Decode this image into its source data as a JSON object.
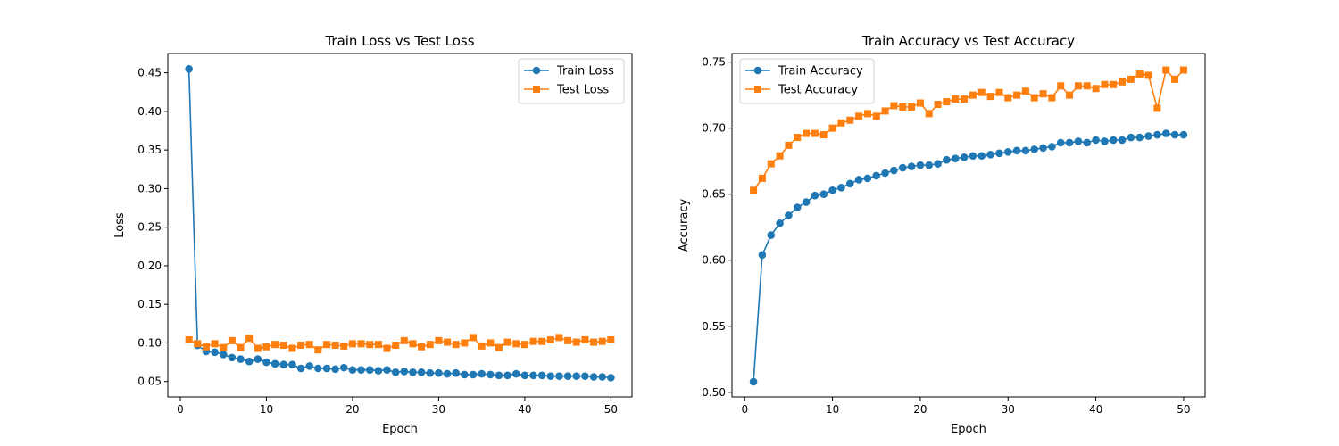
{
  "chart_data": [
    {
      "type": "line",
      "title": "Train Loss vs Test Loss",
      "xlabel": "Epoch",
      "ylabel": "Loss",
      "xlim": [
        -1.45,
        52.45
      ],
      "ylim": [
        0.03,
        0.475
      ],
      "xticks": [
        0,
        10,
        20,
        30,
        40,
        50
      ],
      "yticks": [
        0.05,
        0.1,
        0.15,
        0.2,
        0.25,
        0.3,
        0.35,
        0.4,
        0.45
      ],
      "legend_position": "top-right",
      "x": [
        1,
        2,
        3,
        4,
        5,
        6,
        7,
        8,
        9,
        10,
        11,
        12,
        13,
        14,
        15,
        16,
        17,
        18,
        19,
        20,
        21,
        22,
        23,
        24,
        25,
        26,
        27,
        28,
        29,
        30,
        31,
        32,
        33,
        34,
        35,
        36,
        37,
        38,
        39,
        40,
        41,
        42,
        43,
        44,
        45,
        46,
        47,
        48,
        49,
        50
      ],
      "series": [
        {
          "name": "Train Loss",
          "color": "#1f77b4",
          "marker": "circle",
          "values": [
            0.455,
            0.097,
            0.089,
            0.088,
            0.085,
            0.081,
            0.079,
            0.076,
            0.079,
            0.075,
            0.073,
            0.072,
            0.072,
            0.067,
            0.07,
            0.067,
            0.067,
            0.066,
            0.068,
            0.065,
            0.065,
            0.065,
            0.064,
            0.065,
            0.062,
            0.063,
            0.062,
            0.062,
            0.061,
            0.061,
            0.06,
            0.061,
            0.059,
            0.059,
            0.06,
            0.059,
            0.058,
            0.058,
            0.06,
            0.058,
            0.058,
            0.058,
            0.057,
            0.057,
            0.057,
            0.057,
            0.057,
            0.056,
            0.056,
            0.055
          ]
        },
        {
          "name": "Test Loss",
          "color": "#ff7f0e",
          "marker": "square",
          "values": [
            0.104,
            0.099,
            0.095,
            0.099,
            0.094,
            0.103,
            0.094,
            0.106,
            0.093,
            0.095,
            0.098,
            0.097,
            0.093,
            0.097,
            0.098,
            0.091,
            0.098,
            0.097,
            0.096,
            0.099,
            0.099,
            0.098,
            0.098,
            0.093,
            0.097,
            0.103,
            0.099,
            0.095,
            0.098,
            0.103,
            0.101,
            0.098,
            0.1,
            0.107,
            0.096,
            0.1,
            0.094,
            0.101,
            0.099,
            0.098,
            0.102,
            0.102,
            0.104,
            0.107,
            0.103,
            0.101,
            0.104,
            0.101,
            0.102,
            0.104
          ]
        }
      ]
    },
    {
      "type": "line",
      "title": "Train Accuracy vs Test Accuracy",
      "xlabel": "Epoch",
      "ylabel": "Accuracy",
      "xlim": [
        -1.45,
        52.45
      ],
      "ylim": [
        0.4965,
        0.7565
      ],
      "xticks": [
        0,
        10,
        20,
        30,
        40,
        50
      ],
      "yticks": [
        0.5,
        0.55,
        0.6,
        0.65,
        0.7,
        0.75
      ],
      "legend_position": "top-left",
      "x": [
        1,
        2,
        3,
        4,
        5,
        6,
        7,
        8,
        9,
        10,
        11,
        12,
        13,
        14,
        15,
        16,
        17,
        18,
        19,
        20,
        21,
        22,
        23,
        24,
        25,
        26,
        27,
        28,
        29,
        30,
        31,
        32,
        33,
        34,
        35,
        36,
        37,
        38,
        39,
        40,
        41,
        42,
        43,
        44,
        45,
        46,
        47,
        48,
        49,
        50
      ],
      "series": [
        {
          "name": "Train Accuracy",
          "color": "#1f77b4",
          "marker": "circle",
          "values": [
            0.508,
            0.604,
            0.619,
            0.628,
            0.634,
            0.64,
            0.644,
            0.649,
            0.65,
            0.653,
            0.655,
            0.658,
            0.661,
            0.662,
            0.664,
            0.666,
            0.668,
            0.67,
            0.671,
            0.672,
            0.672,
            0.673,
            0.676,
            0.677,
            0.678,
            0.679,
            0.679,
            0.68,
            0.681,
            0.682,
            0.683,
            0.683,
            0.684,
            0.685,
            0.686,
            0.689,
            0.689,
            0.69,
            0.689,
            0.691,
            0.69,
            0.691,
            0.691,
            0.693,
            0.693,
            0.694,
            0.695,
            0.696,
            0.695,
            0.695
          ]
        },
        {
          "name": "Test Accuracy",
          "color": "#ff7f0e",
          "marker": "square",
          "values": [
            0.653,
            0.662,
            0.673,
            0.679,
            0.687,
            0.693,
            0.696,
            0.696,
            0.695,
            0.7,
            0.704,
            0.706,
            0.709,
            0.711,
            0.709,
            0.713,
            0.717,
            0.716,
            0.716,
            0.719,
            0.711,
            0.718,
            0.72,
            0.722,
            0.722,
            0.725,
            0.727,
            0.724,
            0.727,
            0.723,
            0.725,
            0.728,
            0.723,
            0.726,
            0.723,
            0.732,
            0.725,
            0.732,
            0.732,
            0.73,
            0.733,
            0.733,
            0.735,
            0.737,
            0.741,
            0.74,
            0.715,
            0.744,
            0.737,
            0.744
          ]
        }
      ]
    }
  ]
}
